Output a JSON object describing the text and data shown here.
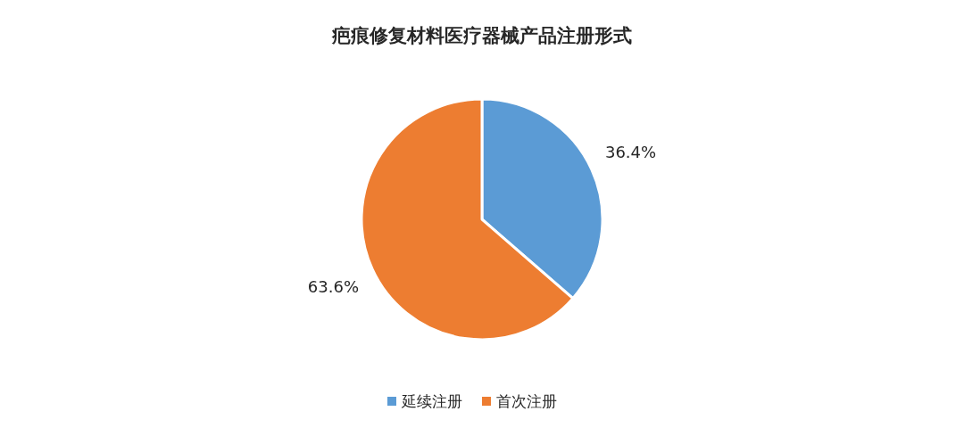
{
  "chart_data": {
    "type": "pie",
    "title": "疤痕修复材料医疗器械产品注册形式",
    "categories": [
      "延续注册",
      "首次注册"
    ],
    "values": [
      36.4,
      63.6
    ],
    "colors": [
      "#5b9bd5",
      "#ed7d31"
    ],
    "value_labels": [
      "36.4%",
      "63.6%"
    ],
    "legend": "bottom"
  }
}
